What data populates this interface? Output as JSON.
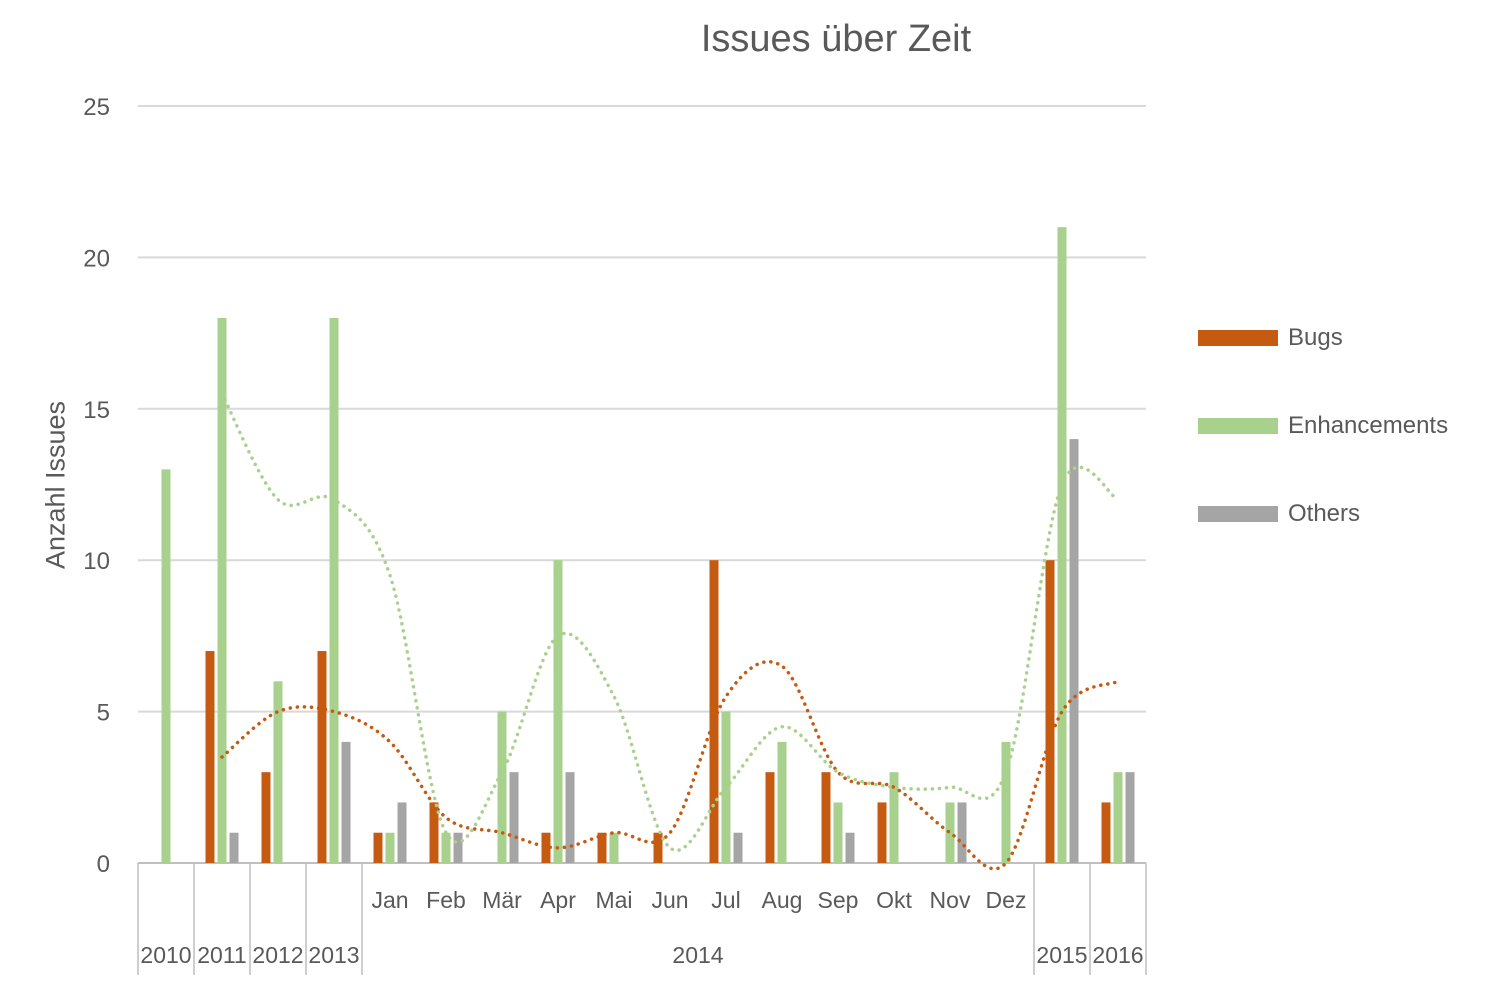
{
  "chart_data": {
    "type": "bar",
    "title": "Issues über Zeit",
    "xlabel": "",
    "ylabel": "Anzahl Issues",
    "ylim": [
      0,
      25
    ],
    "yticks": [
      0,
      5,
      10,
      15,
      20,
      25
    ],
    "grid": true,
    "legend_position": "right",
    "categories": [
      {
        "label": "",
        "group": "2010"
      },
      {
        "label": "",
        "group": "2011"
      },
      {
        "label": "",
        "group": "2012"
      },
      {
        "label": "",
        "group": "2013"
      },
      {
        "label": "Jan",
        "group": "2014"
      },
      {
        "label": "Feb",
        "group": "2014"
      },
      {
        "label": "Mär",
        "group": "2014"
      },
      {
        "label": "Apr",
        "group": "2014"
      },
      {
        "label": "Mai",
        "group": "2014"
      },
      {
        "label": "Jun",
        "group": "2014"
      },
      {
        "label": "Jul",
        "group": "2014"
      },
      {
        "label": "Aug",
        "group": "2014"
      },
      {
        "label": "Sep",
        "group": "2014"
      },
      {
        "label": "Okt",
        "group": "2014"
      },
      {
        "label": "Nov",
        "group": "2014"
      },
      {
        "label": "Dez",
        "group": "2014"
      },
      {
        "label": "",
        "group": "2015"
      },
      {
        "label": "",
        "group": "2016"
      }
    ],
    "groups": [
      "2010",
      "2011",
      "2012",
      "2013",
      "2014",
      "2015",
      "2016"
    ],
    "series": [
      {
        "name": "Bugs",
        "color": "#c55a11",
        "values": [
          0,
          7,
          3,
          7,
          1,
          2,
          0,
          1,
          1,
          1,
          10,
          3,
          3,
          2,
          0,
          0,
          10,
          2
        ]
      },
      {
        "name": "Enhancements",
        "color": "#a9d18e",
        "values": [
          13,
          18,
          6,
          18,
          1,
          1,
          5,
          10,
          1,
          0,
          5,
          4,
          2,
          3,
          2,
          4,
          21,
          3
        ]
      },
      {
        "name": "Others",
        "color": "#a5a5a5",
        "values": [
          0,
          1,
          0,
          4,
          2,
          1,
          3,
          3,
          0,
          0,
          1,
          0,
          1,
          0,
          2,
          0,
          14,
          3
        ]
      }
    ],
    "trendlines": [
      {
        "series": "Bugs",
        "type": "moving-average",
        "period": 2,
        "style": "dotted",
        "color": "#c55a11",
        "values": [
          null,
          3.5,
          5,
          5,
          4,
          1.5,
          1,
          0.5,
          1,
          1,
          5.5,
          6.5,
          3,
          2.5,
          1,
          0,
          5,
          6
        ]
      },
      {
        "series": "Enhancements",
        "type": "moving-average",
        "period": 2,
        "style": "dotted",
        "color": "#a9d18e",
        "values": [
          null,
          15.5,
          12,
          12,
          9.5,
          1,
          3,
          7.5,
          5.5,
          0.5,
          2.5,
          4.5,
          3,
          2.5,
          2.5,
          3,
          12.5,
          12
        ]
      }
    ]
  }
}
